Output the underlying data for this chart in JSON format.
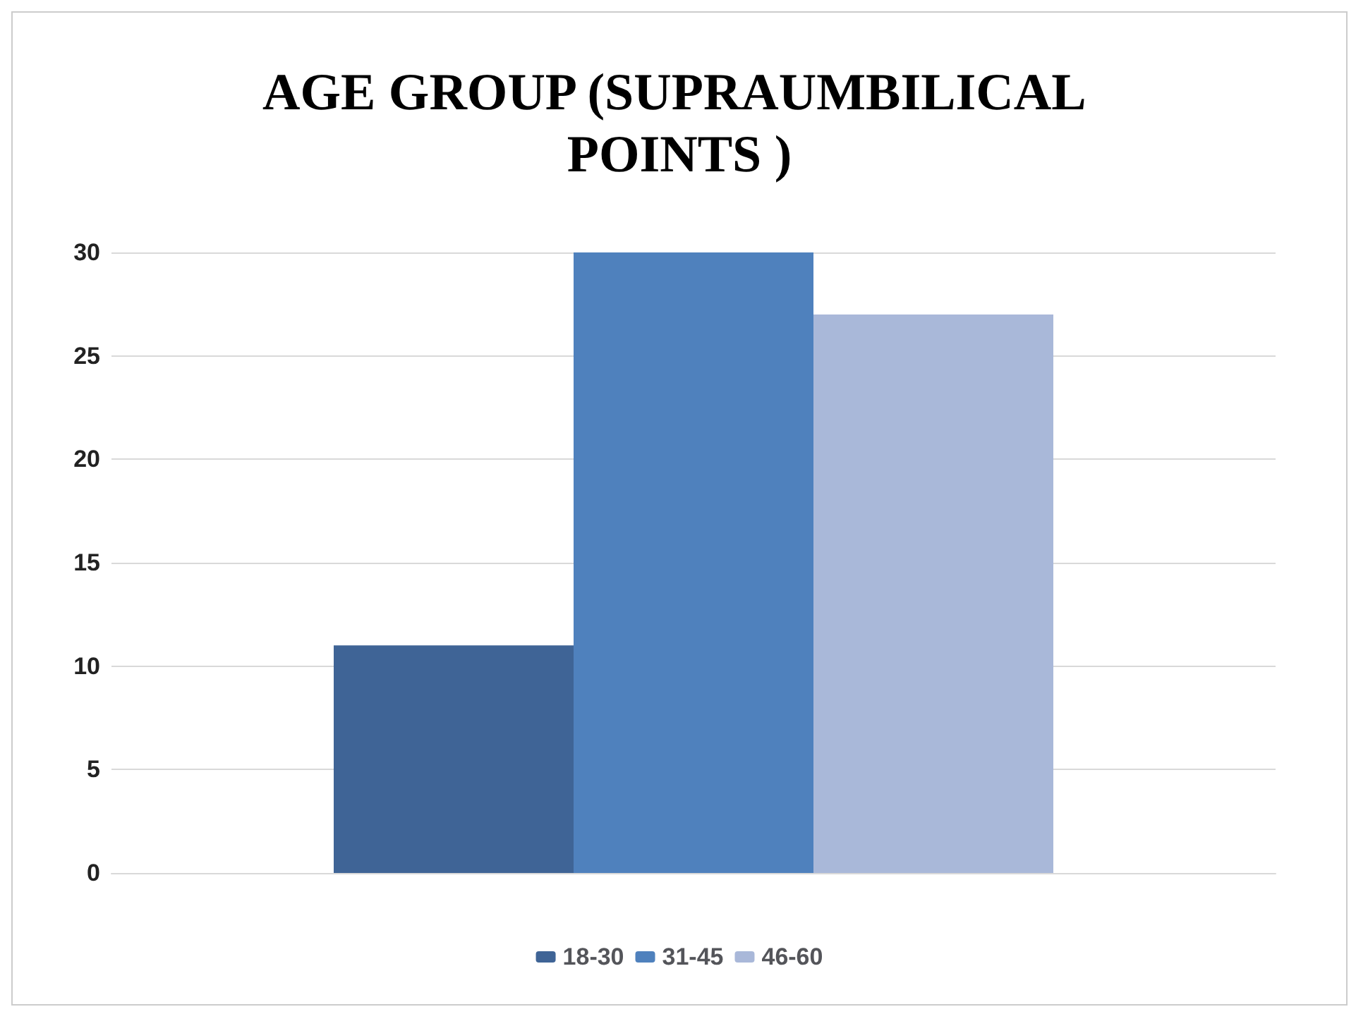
{
  "chart_data": {
    "type": "bar",
    "title": "AGE GROUP (SUPRAUMBILICAL POINTS )",
    "categories": [
      null
    ],
    "series": [
      {
        "name": "18-30",
        "color": "#3f6496",
        "values": [
          11
        ]
      },
      {
        "name": "31-45",
        "color": "#4f81bd",
        "values": [
          30
        ]
      },
      {
        "name": "46-60",
        "color": "#a9b8d9",
        "values": [
          27
        ]
      }
    ],
    "ylim": [
      0,
      30
    ],
    "yticks": [
      0,
      5,
      10,
      15,
      20,
      25,
      30
    ],
    "grid": "y",
    "legend": "bottom"
  }
}
